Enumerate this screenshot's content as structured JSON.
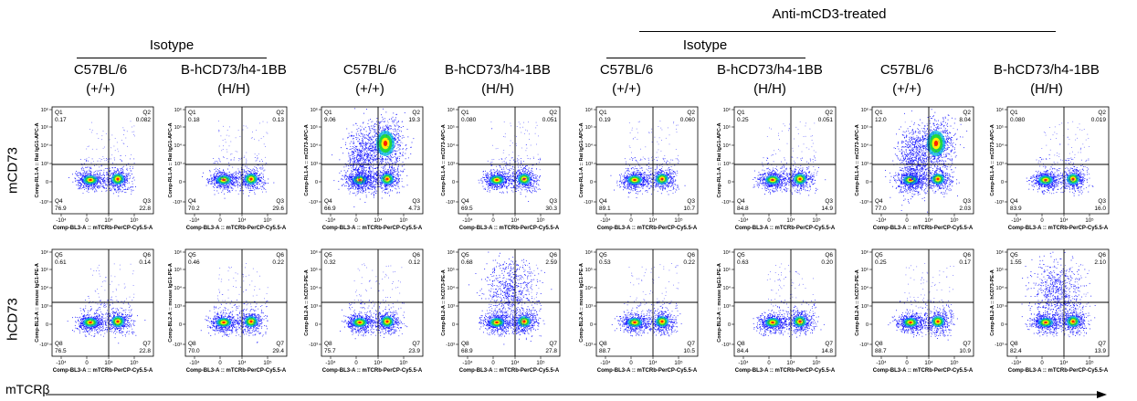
{
  "header": {
    "group_label": "Anti-mCD3-treated",
    "isotype_left": "Isotype",
    "isotype_right": "Isotype"
  },
  "columns": [
    {
      "strain": "C57BL/6",
      "genotype": "(+/+)"
    },
    {
      "strain": "B-hCD73/h4-1BB",
      "genotype": "(H/H)"
    },
    {
      "strain": "C57BL/6",
      "genotype": "(+/+)"
    },
    {
      "strain": "B-hCD73/h4-1BB",
      "genotype": "(H/H)"
    },
    {
      "strain": "C57BL/6",
      "genotype": "(+/+)"
    },
    {
      "strain": "B-hCD73/h4-1BB",
      "genotype": "(H/H)"
    },
    {
      "strain": "C57BL/6",
      "genotype": "(+/+)"
    },
    {
      "strain": "B-hCD73/h4-1BB",
      "genotype": "(H/H)"
    }
  ],
  "row_labels": [
    "mCD73",
    "hCD73"
  ],
  "x_axis_title": "mTCRβ",
  "chart_data": {
    "type": "scatter",
    "plot_kind": "flow cytometry density dot plot (pseudocolor)",
    "x_tick_labels": [
      "-10⁴",
      "0",
      "10⁴",
      "10⁵"
    ],
    "y_tick_labels": [
      "10⁶",
      "10⁵",
      "10⁴",
      "10³",
      "0",
      "-10³"
    ],
    "colors": {
      "dots": "#1a1aff",
      "core_green": "#22dd22",
      "core_yellow": "#ffee00",
      "core_red": "#ff2200"
    },
    "rows": [
      {
        "marker": "mCD73",
        "quadrant_names": [
          "Q1",
          "Q2",
          "Q3",
          "Q4"
        ],
        "panels": [
          {
            "xlabel": "Comp-BL3-A :: mTCRb-PerCP-Cy5.5-A",
            "ylabel": "Comp-RL1-A :: Rat IgG1-APC-A",
            "q": [
              "0.17",
              "0.082",
              "22.8",
              "76.9"
            ]
          },
          {
            "xlabel": "Comp-BL3-A :: mTCRb-PerCP-Cy5.5-A",
            "ylabel": "Comp-RL1-A :: Rat IgG1-APC-A",
            "q": [
              "0.18",
              "0.13",
              "29.6",
              "70.2"
            ]
          },
          {
            "xlabel": "Comp-BL3-A :: mTCRb-PerCP-Cy5.5-A",
            "ylabel": "Comp-RL1-A :: mCD73-APC-A",
            "q": [
              "9.06",
              "19.3",
              "4.73",
              "66.9"
            ]
          },
          {
            "xlabel": "Comp-BL3-A :: mTCRb-PerCP-Cy5.5-A",
            "ylabel": "Comp-RL1-A :: mCD73-APC-A",
            "q": [
              "0.080",
              "0.051",
              "30.3",
              "69.5"
            ]
          },
          {
            "xlabel": "Comp-BL3-A :: mTCRb-PerCP-Cy5.5-A",
            "ylabel": "Comp-RL1-A :: Rat IgG1-APC-A",
            "q": [
              "0.19",
              "0.060",
              "10.7",
              "89.1"
            ]
          },
          {
            "xlabel": "Comp-BL3-A :: mTCRb-PerCP-Cy5.5-A",
            "ylabel": "Comp-RL1-A :: Rat IgG1-APC-A",
            "q": [
              "0.25",
              "0.051",
              "14.9",
              "84.8"
            ]
          },
          {
            "xlabel": "Comp-BL3-A :: mTCRb-PerCP-Cy5.5-A",
            "ylabel": "Comp-RL1-A :: mCD73-APC-A",
            "q": [
              "12.0",
              "8.04",
              "2.03",
              "77.0"
            ]
          },
          {
            "xlabel": "Comp-BL3-A :: mTCRb-PerCP-Cy5.5-A",
            "ylabel": "Comp-RL1-A :: mCD73-APC-A",
            "q": [
              "0.080",
              "0.019",
              "16.0",
              "83.9"
            ]
          }
        ]
      },
      {
        "marker": "hCD73",
        "quadrant_names": [
          "Q5",
          "Q6",
          "Q7",
          "Q8"
        ],
        "panels": [
          {
            "xlabel": "Comp-BL3-A :: mTCRb-PerCP-Cy5.5-A",
            "ylabel": "Comp-BL2-A :: mouse IgG1-PE-A",
            "q": [
              "0.61",
              "0.14",
              "22.8",
              "76.5"
            ]
          },
          {
            "xlabel": "Comp-BL3-A :: mTCRb-PerCP-Cy5.5-A",
            "ylabel": "Comp-BL2-A :: mouse IgG1-PE-A",
            "q": [
              "0.46",
              "0.22",
              "29.4",
              "70.0"
            ]
          },
          {
            "xlabel": "Comp-BL3-A :: mTCRb-PerCP-Cy5.5-A",
            "ylabel": "Comp-BL2-A :: hCD73-PE-A",
            "q": [
              "0.32",
              "0.12",
              "23.9",
              "75.7"
            ]
          },
          {
            "xlabel": "Comp-BL3-A :: mTCRb-PerCP-Cy5.5-A",
            "ylabel": "Comp-BL2-A :: hCD73-PE-A",
            "q": [
              "0.68",
              "2.59",
              "27.8",
              "68.9"
            ]
          },
          {
            "xlabel": "Comp-BL3-A :: mTCRb-PerCP-Cy5.5-A",
            "ylabel": "Comp-BL2-A :: mouse IgG1-PE-A",
            "q": [
              "0.53",
              "0.22",
              "10.5",
              "88.7"
            ]
          },
          {
            "xlabel": "Comp-BL3-A :: mTCRb-PerCP-Cy5.5-A",
            "ylabel": "Comp-BL2-A :: mouse IgG1-PE-A",
            "q": [
              "0.63",
              "0.20",
              "14.8",
              "84.4"
            ]
          },
          {
            "xlabel": "Comp-BL3-A :: mTCRb-PerCP-Cy5.5-A",
            "ylabel": "Comp-BL2-A :: hCD73-PE-A",
            "q": [
              "0.25",
              "0.17",
              "10.9",
              "88.7"
            ]
          },
          {
            "xlabel": "Comp-BL3-A :: mTCRb-PerCP-Cy5.5-A",
            "ylabel": "Comp-BL2-A :: hCD73-PE-A",
            "q": [
              "1.55",
              "2.10",
              "13.9",
              "82.4"
            ]
          }
        ]
      }
    ]
  }
}
